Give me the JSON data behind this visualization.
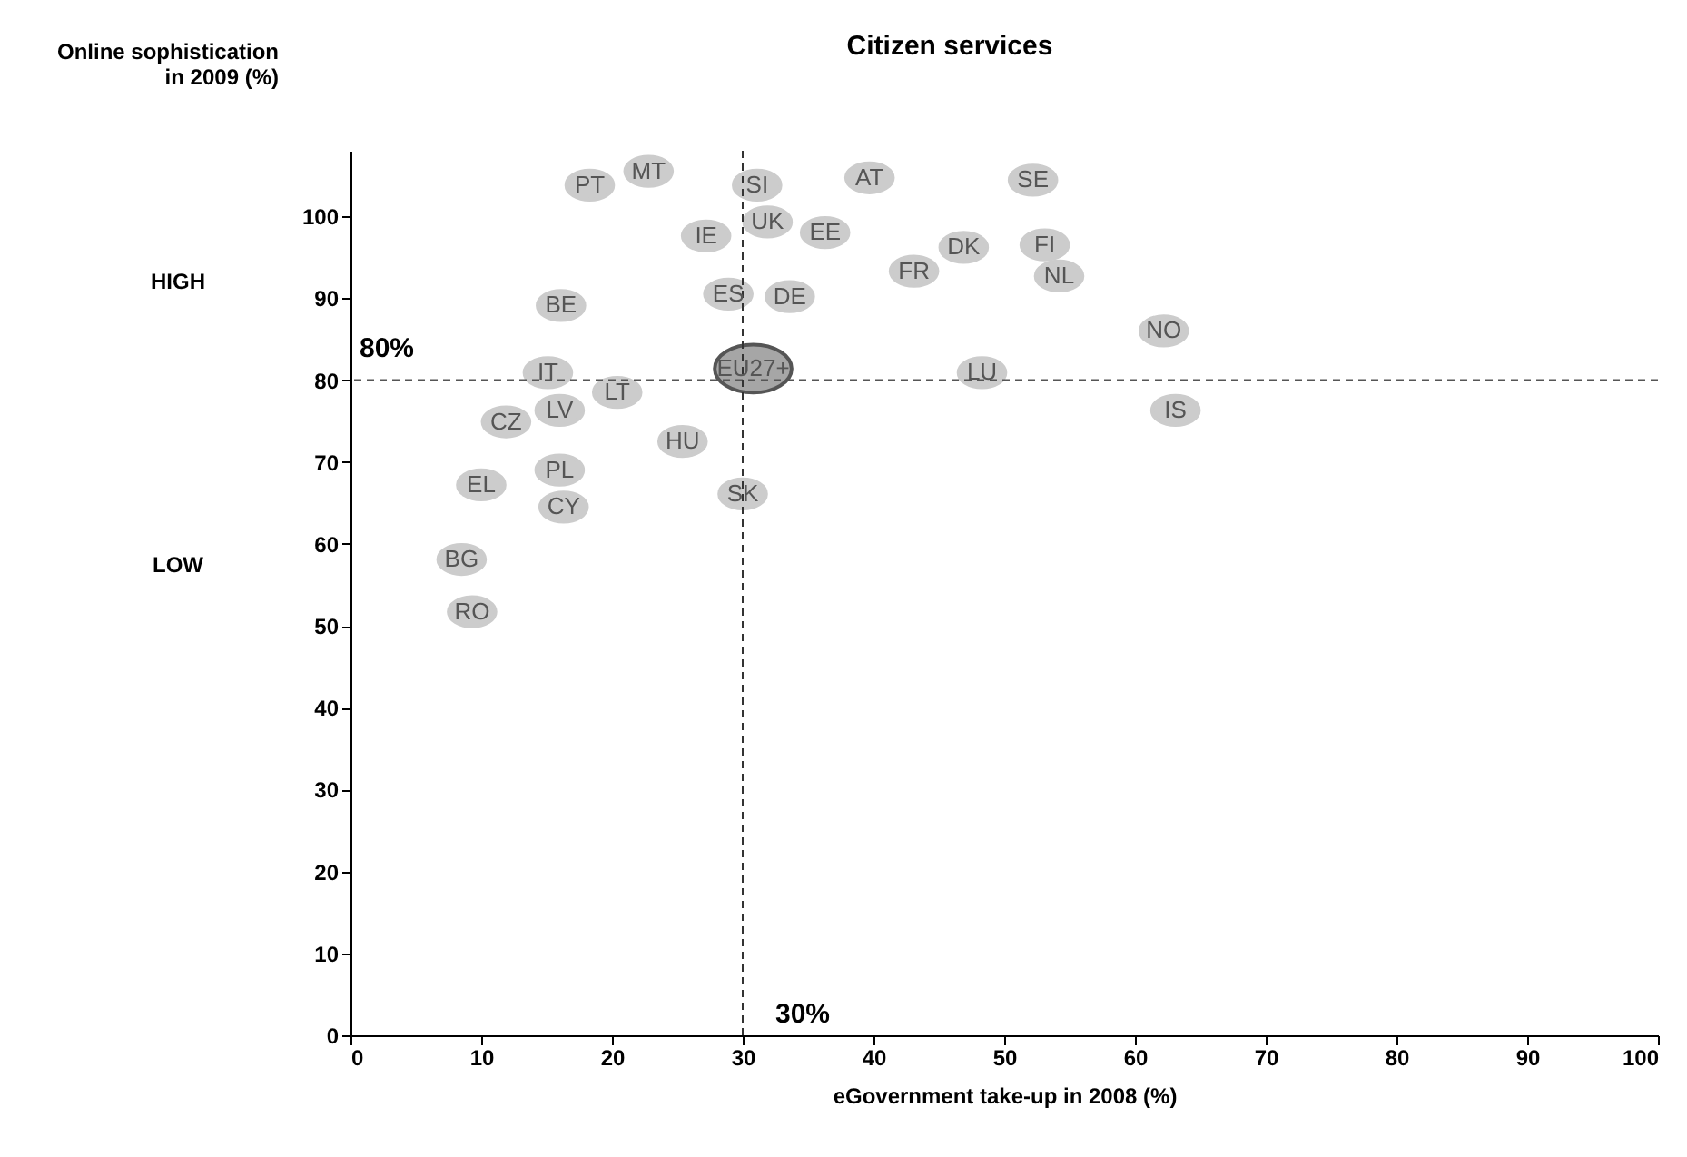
{
  "chart_data": {
    "type": "scatter",
    "title": "Citizen services",
    "xlabel": "eGovernment take-up in 2008 (%)",
    "ylabel": "Online sophistication in 2009 (%)",
    "xlim": [
      0,
      100
    ],
    "xticks": [
      0,
      10,
      20,
      30,
      40,
      50,
      60,
      70,
      80,
      90,
      100
    ],
    "ylim": [
      0,
      108
    ],
    "yticks": [
      0,
      10,
      20,
      30,
      40,
      50,
      60,
      70,
      80,
      90,
      100
    ],
    "grid": false,
    "marker": "circle",
    "annotations": [
      "HIGH",
      "LOW"
    ],
    "ref_lines": [
      {
        "axis": "y",
        "value": 80,
        "label": "80%",
        "color": "#555555",
        "line_style": "dashed"
      },
      {
        "axis": "x",
        "value": 30,
        "label": "30%",
        "color": "#333333",
        "line_style": "dashed"
      }
    ],
    "series": [
      {
        "name": "PT",
        "color": "#cccccc",
        "x": [
          18.3
        ],
        "values": [
          103.8
        ]
      },
      {
        "name": "MT",
        "color": "#cccccc",
        "x": [
          22.8
        ],
        "values": [
          105.5
        ]
      },
      {
        "name": "SI",
        "color": "#cccccc",
        "x": [
          31.1
        ],
        "values": [
          103.8
        ]
      },
      {
        "name": "AT",
        "color": "#cccccc",
        "x": [
          39.7
        ],
        "values": [
          104.7
        ]
      },
      {
        "name": "SE",
        "color": "#cccccc",
        "x": [
          52.2
        ],
        "values": [
          104.4
        ]
      },
      {
        "name": "IE",
        "color": "#cccccc",
        "x": [
          27.2
        ],
        "values": [
          97.6
        ]
      },
      {
        "name": "UK",
        "color": "#cccccc",
        "x": [
          31.9
        ],
        "values": [
          99.3
        ]
      },
      {
        "name": "EE",
        "color": "#cccccc",
        "x": [
          36.3
        ],
        "values": [
          98.0
        ]
      },
      {
        "name": "DK",
        "color": "#cccccc",
        "x": [
          46.9
        ],
        "values": [
          96.2
        ]
      },
      {
        "name": "FI",
        "color": "#cccccc",
        "x": [
          53.1
        ],
        "values": [
          96.5
        ]
      },
      {
        "name": "NL",
        "color": "#cccccc",
        "x": [
          54.2
        ],
        "values": [
          92.7
        ]
      },
      {
        "name": "FR",
        "color": "#cccccc",
        "x": [
          43.1
        ],
        "values": [
          93.3
        ]
      },
      {
        "name": "ES",
        "color": "#cccccc",
        "x": [
          28.9
        ],
        "values": [
          90.5
        ]
      },
      {
        "name": "DE",
        "color": "#cccccc",
        "x": [
          33.6
        ],
        "values": [
          90.2
        ]
      },
      {
        "name": "BE",
        "color": "#cccccc",
        "x": [
          16.1
        ],
        "values": [
          89.1
        ]
      },
      {
        "name": "NO",
        "color": "#cccccc",
        "x": [
          62.2
        ],
        "values": [
          86.0
        ]
      },
      {
        "name": "EU27+",
        "color": "#a6a6a6",
        "x": [
          30.8
        ],
        "values": [
          81.4
        ]
      },
      {
        "name": "LU",
        "color": "#cccccc",
        "x": [
          48.3
        ],
        "values": [
          80.9
        ]
      },
      {
        "name": "IS",
        "color": "#cccccc",
        "x": [
          63.1
        ],
        "values": [
          76.3
        ]
      },
      {
        "name": "IT",
        "color": "#cccccc",
        "x": [
          15.1
        ],
        "values": [
          80.9
        ]
      },
      {
        "name": "LT",
        "color": "#cccccc",
        "x": [
          20.4
        ],
        "values": [
          78.5
        ]
      },
      {
        "name": "CZ",
        "color": "#cccccc",
        "x": [
          11.9
        ],
        "values": [
          74.9
        ]
      },
      {
        "name": "LV",
        "color": "#cccccc",
        "x": [
          16.0
        ],
        "values": [
          76.3
        ]
      },
      {
        "name": "HU",
        "color": "#cccccc",
        "x": [
          25.4
        ],
        "values": [
          72.5
        ]
      },
      {
        "name": "PL",
        "color": "#cccccc",
        "x": [
          16.0
        ],
        "values": [
          69.0
        ]
      },
      {
        "name": "EL",
        "color": "#cccccc",
        "x": [
          10.0
        ],
        "values": [
          67.2
        ]
      },
      {
        "name": "CY",
        "color": "#cccccc",
        "x": [
          16.3
        ],
        "values": [
          64.5
        ]
      },
      {
        "name": "SK",
        "color": "#cccccc",
        "x": [
          30.0
        ],
        "values": [
          66.1
        ]
      },
      {
        "name": "BG",
        "color": "#cccccc",
        "x": [
          8.5
        ],
        "values": [
          58.1
        ]
      },
      {
        "name": "RO",
        "color": "#cccccc",
        "x": [
          9.3
        ],
        "values": [
          51.7
        ]
      }
    ]
  }
}
